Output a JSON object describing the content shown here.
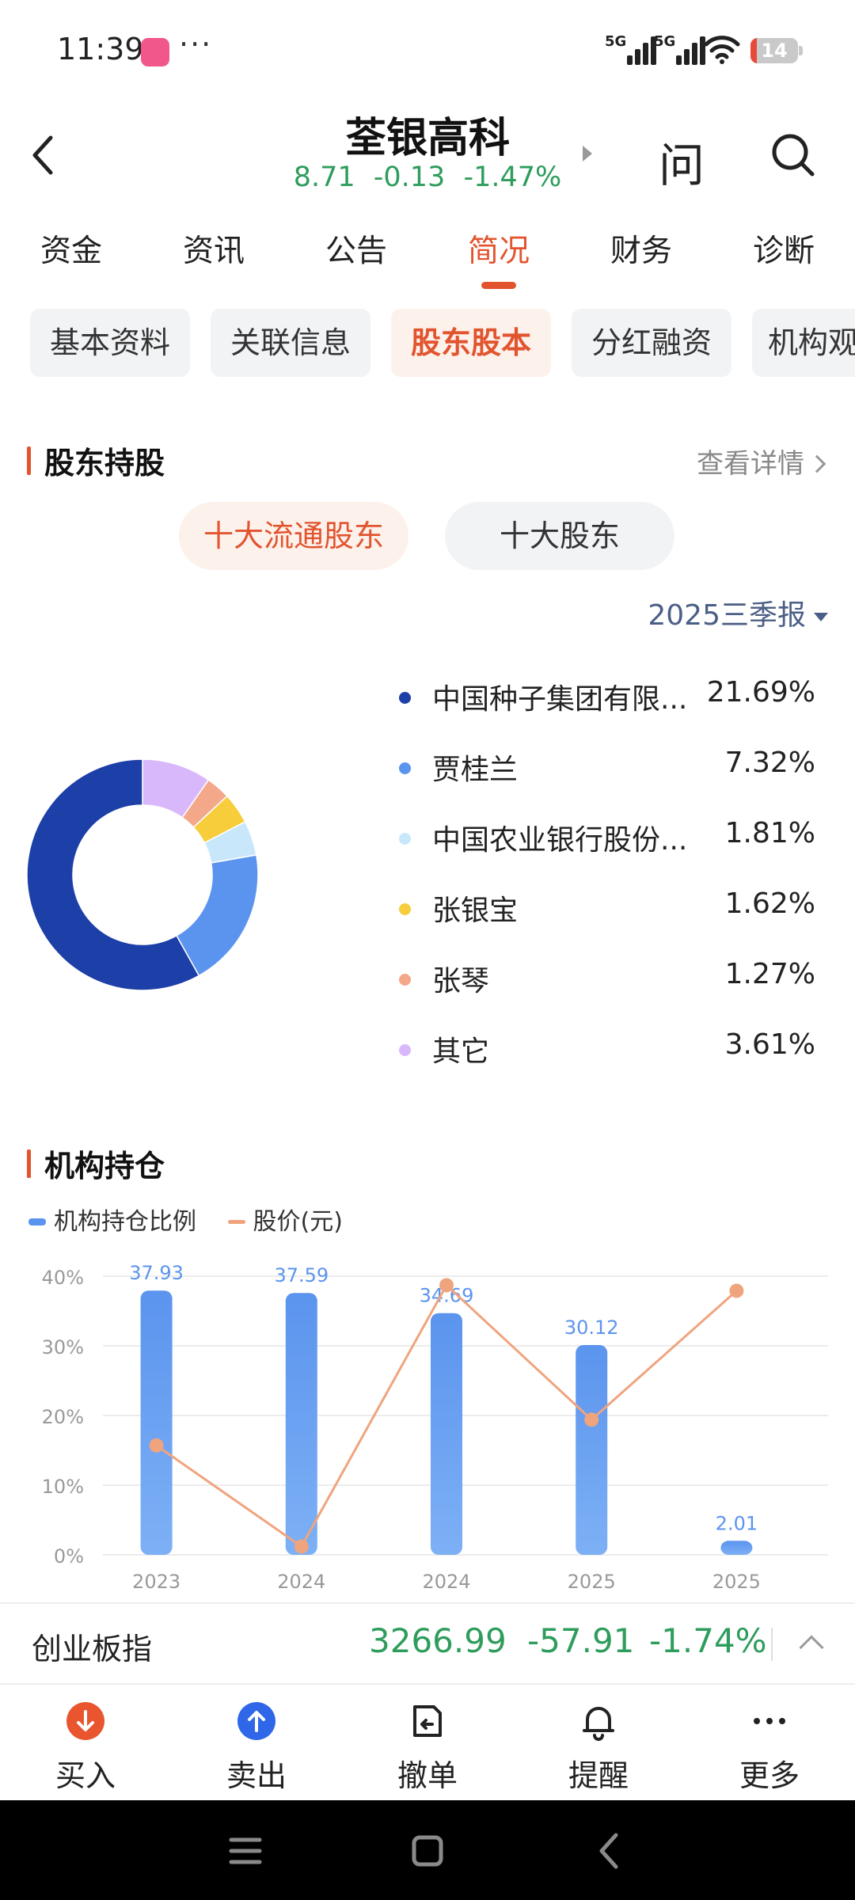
{
  "status_bar": {
    "time": "11:39",
    "more": "···",
    "signal1": "5G",
    "signal2": "5G",
    "battery": "14",
    "battery_level": 0.14
  },
  "header": {
    "stock_name": "荃银高科",
    "price": "8.71",
    "change": "-0.13",
    "change_pct": "-1.47%",
    "ask": "问"
  },
  "main_tabs": [
    "资金",
    "资讯",
    "公告",
    "简况",
    "财务",
    "诊断"
  ],
  "main_tabs_active": 3,
  "sub_tabs": [
    "基本资料",
    "关联信息",
    "股东股本",
    "分红融资",
    "机构观点"
  ],
  "sub_tabs_active": 2,
  "shareholders": {
    "title": "股东持股",
    "detail_link": "查看详情",
    "toggle_active": "十大流通股东",
    "toggle_inactive": "十大股东",
    "period": "2025三季报",
    "items": [
      {
        "name": "中国种子集团有限...",
        "value": "21.69%",
        "pct": 21.69,
        "color": "#1d3fa8"
      },
      {
        "name": "贾桂兰",
        "value": "7.32%",
        "pct": 7.32,
        "color": "#5b94ee"
      },
      {
        "name": "中国农业银行股份...",
        "value": "1.81%",
        "pct": 1.81,
        "color": "#c9e7fa"
      },
      {
        "name": "张银宝",
        "value": "1.62%",
        "pct": 1.62,
        "color": "#f7cd3c"
      },
      {
        "name": "张琴",
        "value": "1.27%",
        "pct": 1.27,
        "color": "#f3a889"
      },
      {
        "name": "其它",
        "value": "3.61%",
        "pct": 3.61,
        "color": "#d8b7fb"
      }
    ]
  },
  "institution": {
    "title": "机构持仓",
    "legend_bar": "机构持仓比例",
    "legend_line": "股价(元)"
  },
  "chart_data": {
    "type": "bar",
    "categories": [
      "2023",
      "2024",
      "2024",
      "2025",
      "2025"
    ],
    "series": [
      {
        "name": "机构持仓比例",
        "type": "bar",
        "values": [
          37.93,
          37.59,
          34.69,
          30.12,
          2.01
        ],
        "labels": [
          "37.93",
          "37.59",
          "34.69",
          "30.12",
          "2.01"
        ],
        "color": "#5b94ee"
      },
      {
        "name": "股价(元)",
        "type": "line",
        "values_as_axis_pct": [
          15.7,
          1.2,
          38.7,
          19.4,
          37.9
        ],
        "color": "#f0a47e"
      }
    ],
    "yticks": [
      "40%",
      "30%",
      "20%",
      "10%",
      "0%"
    ],
    "ylim": [
      0,
      40
    ],
    "grid": true,
    "legend": "top-left"
  },
  "index_bar": {
    "name": "创业板指",
    "value": "3266.99",
    "change": "-57.91",
    "change_pct": "-1.74%"
  },
  "toolbar": {
    "buy": "买入",
    "sell": "卖出",
    "cancel": "撤单",
    "remind": "提醒",
    "more": "更多"
  }
}
